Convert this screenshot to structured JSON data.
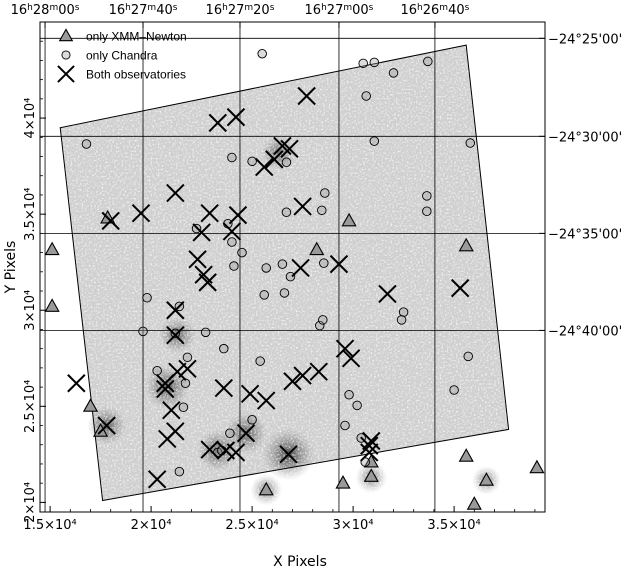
{
  "chart_data": {
    "type": "scatter",
    "xlabel": "X Pixels",
    "ylabel": "Y Pixels",
    "xlim": [
      14500,
      39500
    ],
    "ylim": [
      19500,
      45000
    ],
    "x_ticks": [
      {
        "value": 15000,
        "label": "1.5×10⁴"
      },
      {
        "value": 20000,
        "label": "2×10⁴"
      },
      {
        "value": 25000,
        "label": "2.5×10⁴"
      },
      {
        "value": 30000,
        "label": "3×10⁴"
      },
      {
        "value": 35000,
        "label": "3.5×10⁴"
      }
    ],
    "y_ticks": [
      {
        "value": 20000,
        "label": "2×10⁴"
      },
      {
        "value": 25000,
        "label": "2.5×10⁴"
      },
      {
        "value": 30000,
        "label": "3×10⁴"
      },
      {
        "value": 35000,
        "label": "3.5×10⁴"
      },
      {
        "value": 40000,
        "label": "4×10⁴"
      }
    ],
    "ra_ticks": [
      {
        "x": 14750,
        "h": "16",
        "m": "28",
        "s": "00"
      },
      {
        "x": 19600,
        "h": "16",
        "m": "27",
        "s": "40"
      },
      {
        "x": 24400,
        "h": "16",
        "m": "27",
        "s": "20"
      },
      {
        "x": 29300,
        "h": "16",
        "m": "27",
        "s": "00"
      },
      {
        "x": 34050,
        "h": "16",
        "m": "26",
        "s": "40"
      }
    ],
    "dec_ticks": [
      {
        "y": 44150,
        "label": "−24°25'00''"
      },
      {
        "y": 39050,
        "label": "−24°30'00''"
      },
      {
        "y": 34000,
        "label": "−24°35'00''"
      },
      {
        "y": 28950,
        "label": "−24°40'00''"
      }
    ],
    "legend": [
      {
        "marker": "triangle",
        "label": "only XMM–Newton"
      },
      {
        "marker": "circle",
        "label": "only Chandra"
      },
      {
        "marker": "cross",
        "label": "Both observatories"
      }
    ],
    "legend_position": "top-left",
    "field_outline": [
      [
        15500,
        39500
      ],
      [
        35600,
        43800
      ],
      [
        37700,
        23800
      ],
      [
        17600,
        20100
      ]
    ],
    "series": [
      {
        "name": "only XMM–Newton",
        "marker": "triangle",
        "points": [
          [
            17850,
            34800
          ],
          [
            15100,
            33150
          ],
          [
            15100,
            30200
          ],
          [
            17000,
            25000
          ],
          [
            17500,
            23700
          ],
          [
            29800,
            34650
          ],
          [
            35600,
            33350
          ],
          [
            28200,
            33150
          ],
          [
            30900,
            22100
          ],
          [
            30900,
            21350
          ],
          [
            35600,
            22400
          ],
          [
            36600,
            21150
          ],
          [
            36000,
            19900
          ],
          [
            39100,
            21800
          ],
          [
            25700,
            20650
          ],
          [
            29500,
            21000
          ]
        ]
      },
      {
        "name": "only Chandra",
        "marker": "circle",
        "points": [
          [
            16800,
            38650
          ],
          [
            25500,
            43350
          ],
          [
            30500,
            42850
          ],
          [
            31050,
            42900
          ],
          [
            32000,
            42350
          ],
          [
            33700,
            42950
          ],
          [
            30650,
            41150
          ],
          [
            31050,
            38800
          ],
          [
            35800,
            38700
          ],
          [
            24000,
            37950
          ],
          [
            25000,
            37750
          ],
          [
            26700,
            37700
          ],
          [
            28600,
            36100
          ],
          [
            28450,
            35200
          ],
          [
            26700,
            35100
          ],
          [
            22250,
            34250
          ],
          [
            23800,
            34500
          ],
          [
            33650,
            35950
          ],
          [
            33650,
            35150
          ],
          [
            24000,
            33550
          ],
          [
            24500,
            33000
          ],
          [
            28550,
            32450
          ],
          [
            24100,
            32300
          ],
          [
            26500,
            32400
          ],
          [
            25700,
            32200
          ],
          [
            26900,
            31750
          ],
          [
            19800,
            30650
          ],
          [
            21400,
            30200
          ],
          [
            25600,
            30800
          ],
          [
            26600,
            30900
          ],
          [
            28350,
            29200
          ],
          [
            28500,
            29500
          ],
          [
            32500,
            29900
          ],
          [
            32400,
            29500
          ],
          [
            22700,
            28850
          ],
          [
            19600,
            28900
          ],
          [
            21200,
            28800
          ],
          [
            23600,
            28000
          ],
          [
            25400,
            27350
          ],
          [
            21800,
            27550
          ],
          [
            35700,
            27600
          ],
          [
            20300,
            26850
          ],
          [
            21700,
            26200
          ],
          [
            29800,
            25600
          ],
          [
            30200,
            25050
          ],
          [
            21600,
            24950
          ],
          [
            35000,
            25850
          ],
          [
            25000,
            24300
          ],
          [
            29600,
            24000
          ],
          [
            23900,
            23600
          ],
          [
            30400,
            23350
          ],
          [
            30600,
            22100
          ],
          [
            23300,
            22600
          ],
          [
            23500,
            22700
          ],
          [
            21400,
            21600
          ]
        ]
      },
      {
        "name": "Both observatories",
        "marker": "cross",
        "points": [
          [
            18000,
            34650
          ],
          [
            19500,
            35050
          ],
          [
            21200,
            36100
          ],
          [
            23300,
            39750
          ],
          [
            24200,
            40050
          ],
          [
            25600,
            37450
          ],
          [
            26100,
            37850
          ],
          [
            26500,
            38550
          ],
          [
            26850,
            38400
          ],
          [
            27700,
            41150
          ],
          [
            27500,
            35400
          ],
          [
            22500,
            34050
          ],
          [
            22900,
            35050
          ],
          [
            24300,
            34950
          ],
          [
            24000,
            34100
          ],
          [
            22300,
            32650
          ],
          [
            22600,
            31850
          ],
          [
            22800,
            31450
          ],
          [
            21200,
            30000
          ],
          [
            27400,
            32200
          ],
          [
            29300,
            32400
          ],
          [
            31700,
            30850
          ],
          [
            35300,
            31150
          ],
          [
            21200,
            28700
          ],
          [
            20700,
            26200
          ],
          [
            21300,
            26800
          ],
          [
            20700,
            25900
          ],
          [
            21800,
            26950
          ],
          [
            23600,
            25950
          ],
          [
            24900,
            25650
          ],
          [
            25700,
            25300
          ],
          [
            27000,
            26300
          ],
          [
            27500,
            26600
          ],
          [
            28300,
            26800
          ],
          [
            29900,
            27500
          ],
          [
            29600,
            28000
          ],
          [
            21000,
            24800
          ],
          [
            21200,
            23700
          ],
          [
            20800,
            23300
          ],
          [
            22900,
            22750
          ],
          [
            23700,
            22700
          ],
          [
            24200,
            22600
          ],
          [
            24700,
            23600
          ],
          [
            26800,
            22500
          ],
          [
            30800,
            22600
          ],
          [
            30800,
            22950
          ],
          [
            30900,
            23200
          ],
          [
            20300,
            21200
          ],
          [
            16300,
            26200
          ],
          [
            17800,
            24000
          ]
        ]
      }
    ],
    "hotspots": [
      {
        "x": 20800,
        "y": 26000,
        "strength": 0.55
      },
      {
        "x": 21300,
        "y": 28700,
        "strength": 0.4
      },
      {
        "x": 26800,
        "y": 22500,
        "strength": 0.7
      },
      {
        "x": 23300,
        "y": 22700,
        "strength": 0.5
      },
      {
        "x": 24700,
        "y": 23600,
        "strength": 0.5
      },
      {
        "x": 17800,
        "y": 24000,
        "strength": 0.45
      },
      {
        "x": 26300,
        "y": 38200,
        "strength": 0.35
      },
      {
        "x": 30900,
        "y": 21300,
        "strength": 0.3
      },
      {
        "x": 36600,
        "y": 21150,
        "strength": 0.25
      },
      {
        "x": 25700,
        "y": 20650,
        "strength": 0.3
      }
    ],
    "colors": {
      "background": "#ffffff",
      "diffuse_emission": "#cfcfcf",
      "marker_fill": "#9a9a9a",
      "ink": "#000000"
    }
  }
}
